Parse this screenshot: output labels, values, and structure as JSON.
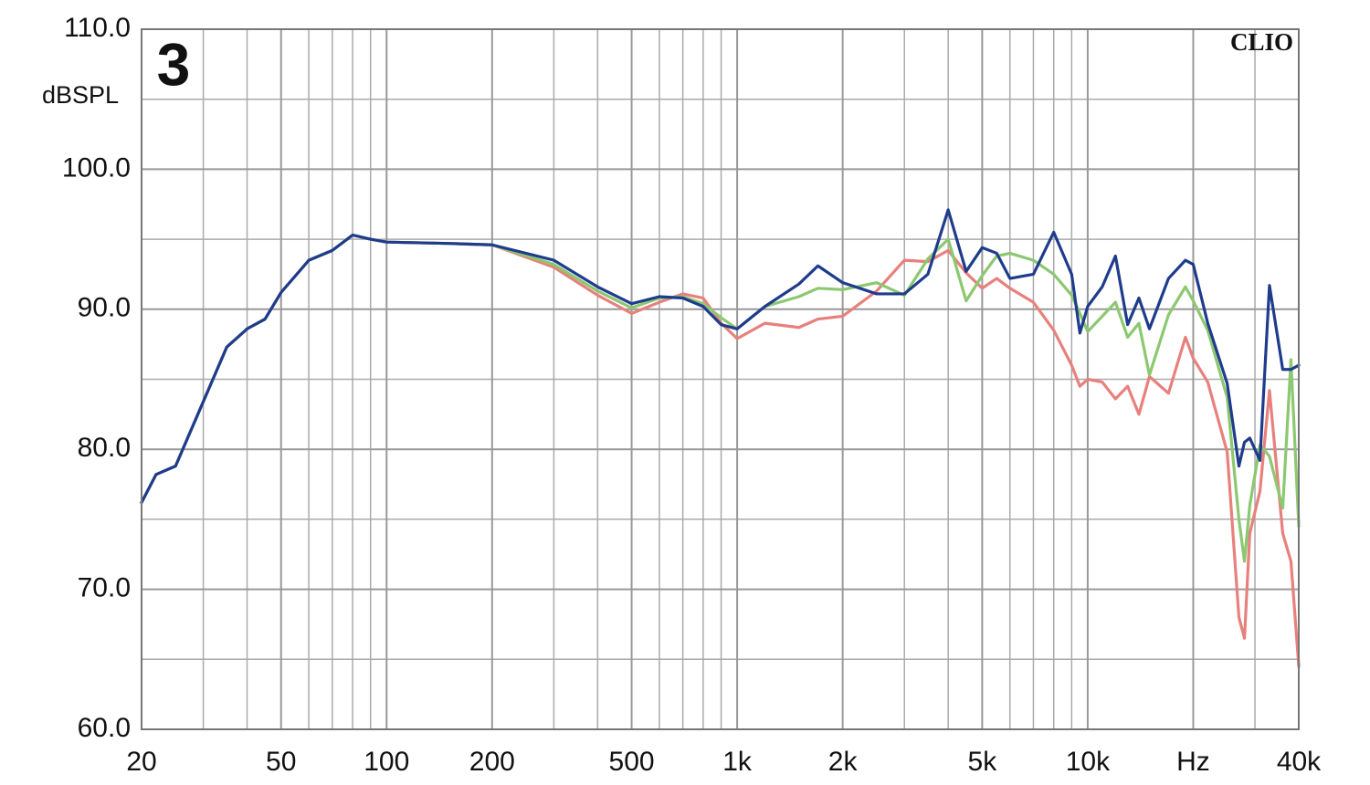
{
  "chart_data": {
    "type": "line",
    "badge": "3",
    "watermark": "CLIO",
    "y_label": "dBSPL",
    "log_x": true,
    "grid": true,
    "x": [
      20,
      22,
      25,
      30,
      35,
      40,
      45,
      50,
      60,
      70,
      80,
      90,
      100,
      150,
      200,
      300,
      400,
      500,
      600,
      700,
      800,
      900,
      1000,
      1200,
      1500,
      1700,
      2000,
      2500,
      3000,
      3500,
      4000,
      4500,
      5000,
      5500,
      6000,
      7000,
      8000,
      9000,
      9500,
      10000,
      11000,
      12000,
      13000,
      14000,
      15000,
      17000,
      19000,
      20000,
      22000,
      25000,
      27000,
      28000,
      29000,
      31000,
      33000,
      36000,
      38000,
      40000
    ],
    "series": [
      {
        "name": "red",
        "color": "#e8807c",
        "values": [
          76.2,
          78.2,
          78.8,
          83.4,
          87.3,
          88.6,
          89.3,
          91.2,
          93.5,
          94.2,
          95.3,
          95.0,
          94.8,
          94.7,
          94.6,
          93.0,
          91.0,
          89.7,
          90.5,
          91.1,
          90.8,
          89.0,
          87.9,
          89.0,
          88.7,
          89.3,
          89.5,
          91.3,
          93.5,
          93.4,
          94.2,
          92.6,
          91.5,
          92.2,
          91.5,
          90.5,
          88.5,
          86.0,
          84.5,
          85.0,
          84.8,
          83.6,
          84.5,
          82.5,
          85.2,
          84.0,
          88.0,
          86.5,
          84.8,
          79.8,
          68.0,
          66.5,
          74.0,
          77.0,
          84.2,
          74.0,
          72.0,
          64.5
        ]
      },
      {
        "name": "green",
        "color": "#8cc870",
        "values": [
          76.2,
          78.2,
          78.8,
          83.4,
          87.3,
          88.6,
          89.3,
          91.2,
          93.5,
          94.2,
          95.3,
          95.0,
          94.8,
          94.7,
          94.6,
          93.2,
          91.3,
          90.1,
          90.8,
          90.9,
          90.4,
          89.4,
          88.6,
          90.2,
          90.9,
          91.5,
          91.4,
          91.9,
          91.0,
          93.6,
          95.0,
          90.6,
          92.4,
          93.8,
          94.0,
          93.5,
          92.5,
          91.0,
          89.7,
          88.4,
          89.5,
          90.5,
          88.0,
          89.0,
          85.3,
          89.6,
          91.6,
          90.6,
          88.5,
          83.7,
          75.0,
          72.0,
          76.0,
          80.3,
          79.5,
          75.8,
          86.4,
          74.5
        ]
      },
      {
        "name": "blue",
        "color": "#1f3c8c",
        "values": [
          76.2,
          78.2,
          78.8,
          83.4,
          87.3,
          88.6,
          89.3,
          91.2,
          93.5,
          94.2,
          95.3,
          95.0,
          94.8,
          94.7,
          94.6,
          93.5,
          91.6,
          90.4,
          90.9,
          90.8,
          90.2,
          88.9,
          88.6,
          90.2,
          91.8,
          93.1,
          91.9,
          91.1,
          91.1,
          92.5,
          97.1,
          92.7,
          94.4,
          94.0,
          92.2,
          92.5,
          95.5,
          92.5,
          88.3,
          90.2,
          91.6,
          93.8,
          88.9,
          90.8,
          88.6,
          92.2,
          93.5,
          93.2,
          89.0,
          84.7,
          78.8,
          80.5,
          80.8,
          79.2,
          91.7,
          85.7,
          85.7,
          86.0
        ]
      }
    ],
    "xlim": [
      20,
      40000
    ],
    "ylim": [
      60,
      110
    ],
    "xticks": [
      20,
      50,
      100,
      200,
      500,
      {
        "value": 1000,
        "label": "1k"
      },
      {
        "value": 2000,
        "label": "2k"
      },
      {
        "value": 5000,
        "label": "5k"
      },
      {
        "value": 10000,
        "label": "10k"
      },
      {
        "value": 20000,
        "label": "Hz"
      },
      {
        "value": 40000,
        "label": "40k"
      }
    ],
    "xminorticks": [
      30,
      40,
      60,
      70,
      80,
      90,
      300,
      400,
      600,
      700,
      800,
      900,
      3000,
      4000,
      6000,
      7000,
      8000,
      9000,
      30000
    ],
    "yticks": [
      {
        "value": 60,
        "label": "60.0"
      },
      {
        "value": 70,
        "label": "70.0"
      },
      {
        "value": 80,
        "label": "80.0"
      },
      {
        "value": 90,
        "label": "90.0"
      },
      {
        "value": 100,
        "label": "100.0"
      },
      {
        "value": 110,
        "label": "110.0"
      }
    ],
    "yminorticks": [
      65,
      75,
      85,
      95,
      105
    ]
  }
}
